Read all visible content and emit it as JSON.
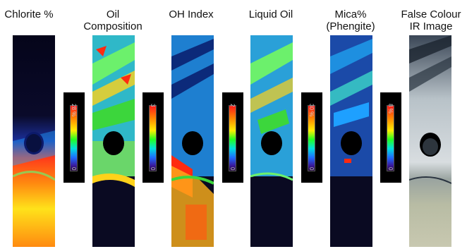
{
  "panels": [
    {
      "id": "chlorite",
      "title_l1": "Chlorite %",
      "title_l2": ""
    },
    {
      "id": "oil-composition",
      "title_l1": "Oil",
      "title_l2": "Composition"
    },
    {
      "id": "oh-index",
      "title_l1": "OH Index",
      "title_l2": ""
    },
    {
      "id": "liquid-oil",
      "title_l1": "Liquid Oil",
      "title_l2": ""
    },
    {
      "id": "mica",
      "title_l1": "Mica%",
      "title_l2": "(Phengite)"
    },
    {
      "id": "false-colour",
      "title_l1": "False Colour",
      "title_l2": "IR Image"
    }
  ],
  "colorbars": [
    {
      "max": "28 %",
      "min": "0"
    },
    {
      "max": "3",
      "min": "0"
    },
    {
      "max": "2",
      "min": "0"
    },
    {
      "max": "30 %",
      "min": "0"
    },
    {
      "max": "8 %",
      "min": "0"
    }
  ],
  "colors": {
    "background": "#ffffff",
    "map_bg": "#000000",
    "hot": "#ff2a10",
    "warm": "#ffd21a",
    "mid": "#3cd63c",
    "cool": "#1ea0ff",
    "cold": "#1b2e9a"
  }
}
